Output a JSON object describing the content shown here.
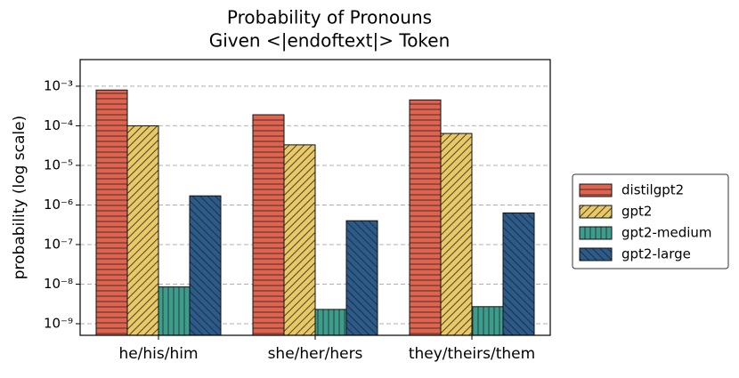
{
  "chart_data": {
    "type": "bar",
    "title": [
      "Probability of Pronouns",
      "Given <|endoftext|> Token"
    ],
    "y_label": "probability (log scale)",
    "y_scale": "log",
    "categories": [
      "he/his/him",
      "she/her/hers",
      "they/theirs/them"
    ],
    "series": [
      {
        "name": "distilgpt2",
        "color": "#e0634f",
        "hatch": "-",
        "values": [
          0.0008,
          0.00019,
          0.00045
        ]
      },
      {
        "name": "gpt2",
        "color": "#e9c866",
        "hatch": "//",
        "values": [
          0.0001,
          3.3e-05,
          6.4e-05
        ]
      },
      {
        "name": "gpt2-medium",
        "color": "#3d9d8d",
        "hatch": "|",
        "values": [
          8.5e-09,
          2.3e-09,
          2.7e-09
        ]
      },
      {
        "name": "gpt2-large",
        "color": "#2b5b8b",
        "hatch": "\\\\",
        "values": [
          1.7e-06,
          4e-07,
          6.3e-07
        ]
      }
    ],
    "ylim": [
      5.1e-10,
      0.0047
    ],
    "yticks": [
      {
        "value": 0.001,
        "label": "10⁻³"
      },
      {
        "value": 0.0001,
        "label": "10⁻⁴"
      },
      {
        "value": 1e-05,
        "label": "10⁻⁵"
      },
      {
        "value": 1e-06,
        "label": "10⁻⁶"
      },
      {
        "value": 1e-07,
        "label": "10⁻⁷"
      },
      {
        "value": 1e-08,
        "label": "10⁻⁸"
      },
      {
        "value": 1e-09,
        "label": "10⁻⁹"
      }
    ],
    "grid": true,
    "legend": "right"
  }
}
